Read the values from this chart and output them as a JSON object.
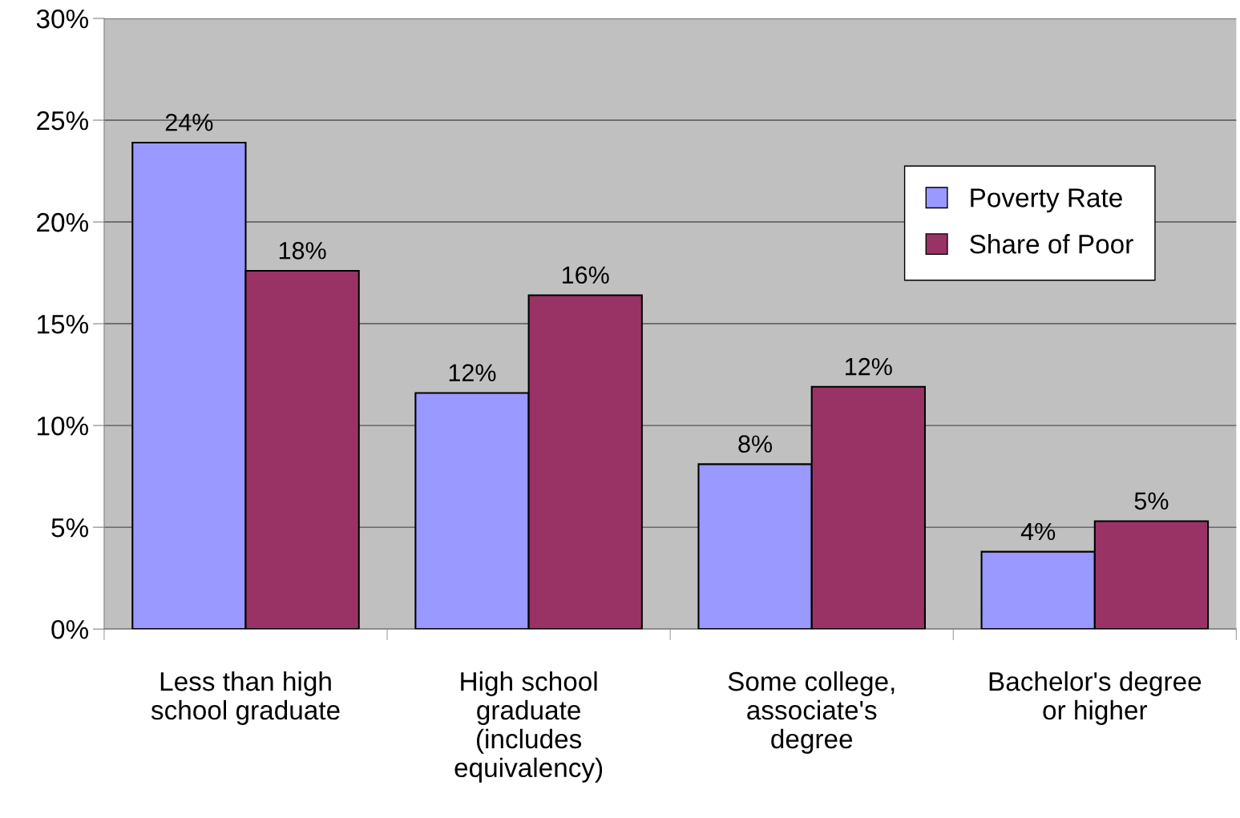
{
  "chart_data": {
    "type": "bar",
    "categories": [
      "Less than high\nschool graduate",
      "High school\ngraduate\n(includes\nequivalency)",
      "Some college,\nassociate's\ndegree",
      "Bachelor's degree\nor higher"
    ],
    "series": [
      {
        "name": "Poverty Rate",
        "color": "#9999ff",
        "values": [
          23.9,
          11.6,
          8.1,
          3.8
        ],
        "value_labels": [
          "24%",
          "12%",
          "8%",
          "4%"
        ]
      },
      {
        "name": "Share of Poor",
        "color": "#993366",
        "values": [
          17.6,
          16.4,
          11.9,
          5.3
        ],
        "value_labels": [
          "18%",
          "16%",
          "12%",
          "5%"
        ]
      }
    ],
    "ylim": [
      0,
      30
    ],
    "yticks": [
      {
        "value": 0,
        "label": "0%"
      },
      {
        "value": 5,
        "label": "5%"
      },
      {
        "value": 10,
        "label": "10%"
      },
      {
        "value": 15,
        "label": "15%"
      },
      {
        "value": 20,
        "label": "20%"
      },
      {
        "value": 25,
        "label": "25%"
      },
      {
        "value": 30,
        "label": "30%"
      }
    ],
    "grid": "y",
    "legend": "top right"
  }
}
